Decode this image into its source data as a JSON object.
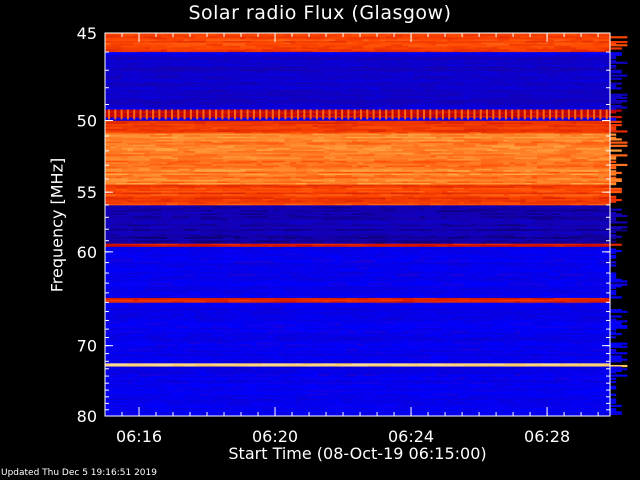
{
  "chart_data": {
    "type": "heatmap",
    "title": "Solar radio Flux (Glasgow)",
    "xlabel": "Start Time (08-Oct-19 06:15:00)",
    "ylabel": "Frequency [MHz]",
    "x_ticks": [
      "06:16",
      "06:20",
      "06:24",
      "06:28"
    ],
    "x_tick_minutes": [
      1,
      5,
      9,
      13
    ],
    "xlim_minutes": [
      0,
      14.85
    ],
    "y_ticks": [
      45,
      50,
      55,
      60,
      70,
      80
    ],
    "ylim": [
      45,
      80
    ],
    "y_scale": "reciprocal",
    "grid": false,
    "colormap": [
      "#000000",
      "#1400b0",
      "#0000ff",
      "#c00000",
      "#ff4a00",
      "#ffcc60",
      "#ffffff"
    ],
    "emission_bands_mhz": [
      {
        "from": 45.0,
        "to": 46.0,
        "level": "high"
      },
      {
        "from": 49.3,
        "to": 49.8,
        "level": "spiky"
      },
      {
        "from": 50.0,
        "to": 56.0,
        "level": "high"
      },
      {
        "from": 59.3,
        "to": 59.6,
        "level": "line"
      },
      {
        "from": 64.6,
        "to": 65.0,
        "level": "line"
      },
      {
        "from": 72.3,
        "to": 72.8,
        "level": "peak"
      }
    ]
  },
  "footer": "Updated Thu Dec  5 19:16:51 2019"
}
